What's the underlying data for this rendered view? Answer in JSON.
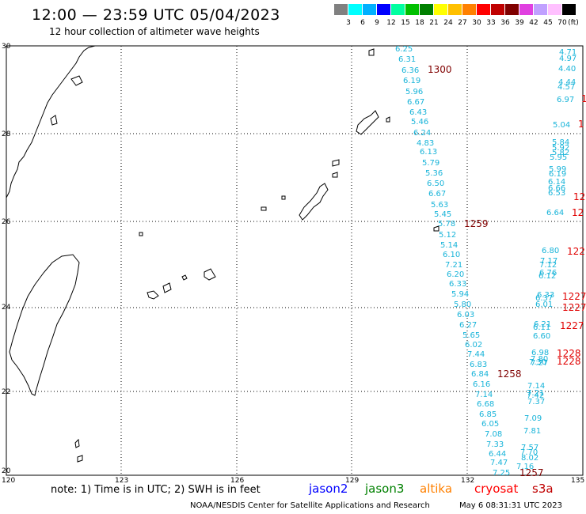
{
  "title": "12:00 — 23:59 UTC 05/04/2023",
  "subtitle": "12 hour collection of altimeter wave heights",
  "legend": {
    "unit": "(ft)",
    "colors": [
      "#808080",
      "#00ffff",
      "#00b0ff",
      "#0000ff",
      "#00ffa0",
      "#00c000",
      "#008000",
      "#ffff00",
      "#ffc000",
      "#ff8000",
      "#ff0000",
      "#c00000",
      "#800000",
      "#e040e0",
      "#c0a0ff",
      "#ffc0ff",
      "#000000"
    ],
    "labels": [
      "3",
      "6",
      "9",
      "12",
      "15",
      "18",
      "21",
      "24",
      "27",
      "30",
      "33",
      "36",
      "39",
      "42",
      "45",
      "70"
    ]
  },
  "axes": {
    "lat_labels": [
      "30",
      "28",
      "26",
      "24",
      "22",
      "20"
    ],
    "lon_labels": [
      "120",
      "123",
      "126",
      "129",
      "132",
      "135"
    ]
  },
  "colors": {
    "wave_text": "#19b4d9",
    "time_dark": "#800000",
    "time_red": "#e00000"
  },
  "wave_heights": [
    "6.25",
    "6.31",
    "6.36",
    "6.19",
    "5.96",
    "6.67",
    "6.43",
    "5.46",
    "6.24",
    "4.83",
    "6.13",
    "5.79",
    "5.36",
    "6.50",
    "6.67",
    "5.63",
    "5.45",
    "5.78",
    "5.12",
    "5.14",
    "6.10",
    "7.21",
    "6.20",
    "6.33",
    "5.94",
    "5.80",
    "6.03",
    "6.27",
    "5.65",
    "6.02",
    "7.44",
    "6.83",
    "6.84",
    "6.16",
    "7.14",
    "6.68",
    "6.85",
    "6.05",
    "7.08",
    "7.33",
    "6.44",
    "7.47",
    "7.25",
    "4.71",
    "4.97",
    "4.40",
    "4.44",
    "4.57",
    "6.97",
    "5.04",
    "5.84",
    "5.92",
    "5.82",
    "5.95",
    "5.99",
    "6.19",
    "6.14",
    "6.66",
    "6.53",
    "6.64",
    "6.80",
    "7.17",
    "7.12",
    "6.76",
    "6.12",
    "6.33",
    "6.37",
    "6.01",
    "6.21",
    "6.11",
    "6.60",
    "6.98",
    "7.80",
    "7.27",
    "7.30",
    "7.14",
    "7.21",
    "7.42",
    "7.37",
    "7.09",
    "7.81",
    "7.57",
    "7.70",
    "8.02",
    "7.16"
  ],
  "pass_times": [
    "1300",
    "1259",
    "1258",
    "1257",
    "1",
    "1",
    "12",
    "12",
    "122",
    "1227",
    "1227",
    "1227",
    "1228",
    "1228"
  ],
  "note": "note:  1) Time is in UTC;  2) SWH is in feet",
  "satellites": [
    {
      "name": "jason2",
      "color": "#0000ff"
    },
    {
      "name": "jason3",
      "color": "#008000"
    },
    {
      "name": "altika",
      "color": "#ff8000"
    },
    {
      "name": "cryosat",
      "color": "#ff0000"
    },
    {
      "name": "s3a",
      "color": "#c00000"
    }
  ],
  "footer": "NOAA/NESDIS Center for Satellite Applications and Research",
  "footer_time": "May  6 08:31:31 UTC 2023"
}
